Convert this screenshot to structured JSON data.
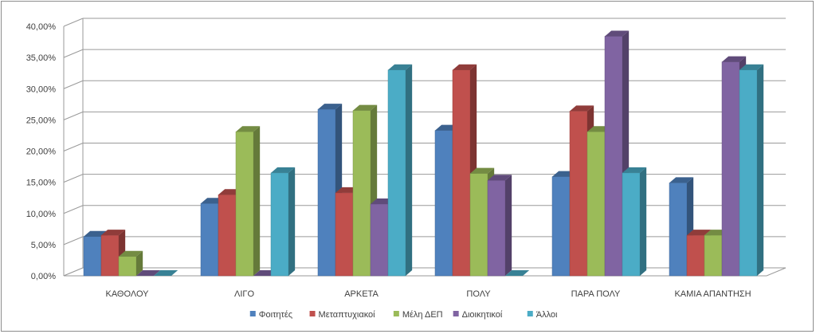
{
  "chart_data": {
    "type": "bar",
    "title": "",
    "xlabel": "",
    "ylabel": "",
    "ylim": [
      0,
      40
    ],
    "ytick_values": [
      0,
      5,
      10,
      15,
      20,
      25,
      30,
      35,
      40
    ],
    "ytick_labels": [
      "0,00%",
      "5,00%",
      "10,00%",
      "15,00%",
      "20,00%",
      "25,00%",
      "30,00%",
      "35,00%",
      "40,00%"
    ],
    "grid": true,
    "legend_position": "bottom",
    "categories": [
      "ΚΑΘΟΛΟΥ",
      "ΛΙΓΟ",
      "ΑΡΚΕΤΑ",
      "ΠΟΛΥ",
      "ΠΑΡΑ ΠΟΛΥ",
      "ΚΑΜΙΑ ΑΠΑΝΤΗΣΗ"
    ],
    "series": [
      {
        "name": "Φοιτητές",
        "color": "#4f81bd",
        "values": [
          6.3,
          11.6,
          26.7,
          23.3,
          15.9,
          14.9
        ]
      },
      {
        "name": "Μεταπτυχιακοί",
        "color": "#c0504d",
        "values": [
          6.5,
          13.0,
          13.3,
          33.0,
          26.4,
          6.5
        ]
      },
      {
        "name": "Μέλη ΔΕΠ",
        "color": "#9bbb59",
        "values": [
          3.1,
          23.1,
          26.5,
          16.4,
          23.1,
          6.5
        ]
      },
      {
        "name": "Διοικητικοί",
        "color": "#8064a2",
        "values": [
          0.0,
          0.0,
          11.5,
          15.3,
          38.4,
          34.3
        ]
      },
      {
        "name": "Άλλοι",
        "color": "#4bacc6",
        "values": [
          0.0,
          16.5,
          33.0,
          0.0,
          16.5,
          33.0
        ]
      }
    ]
  }
}
